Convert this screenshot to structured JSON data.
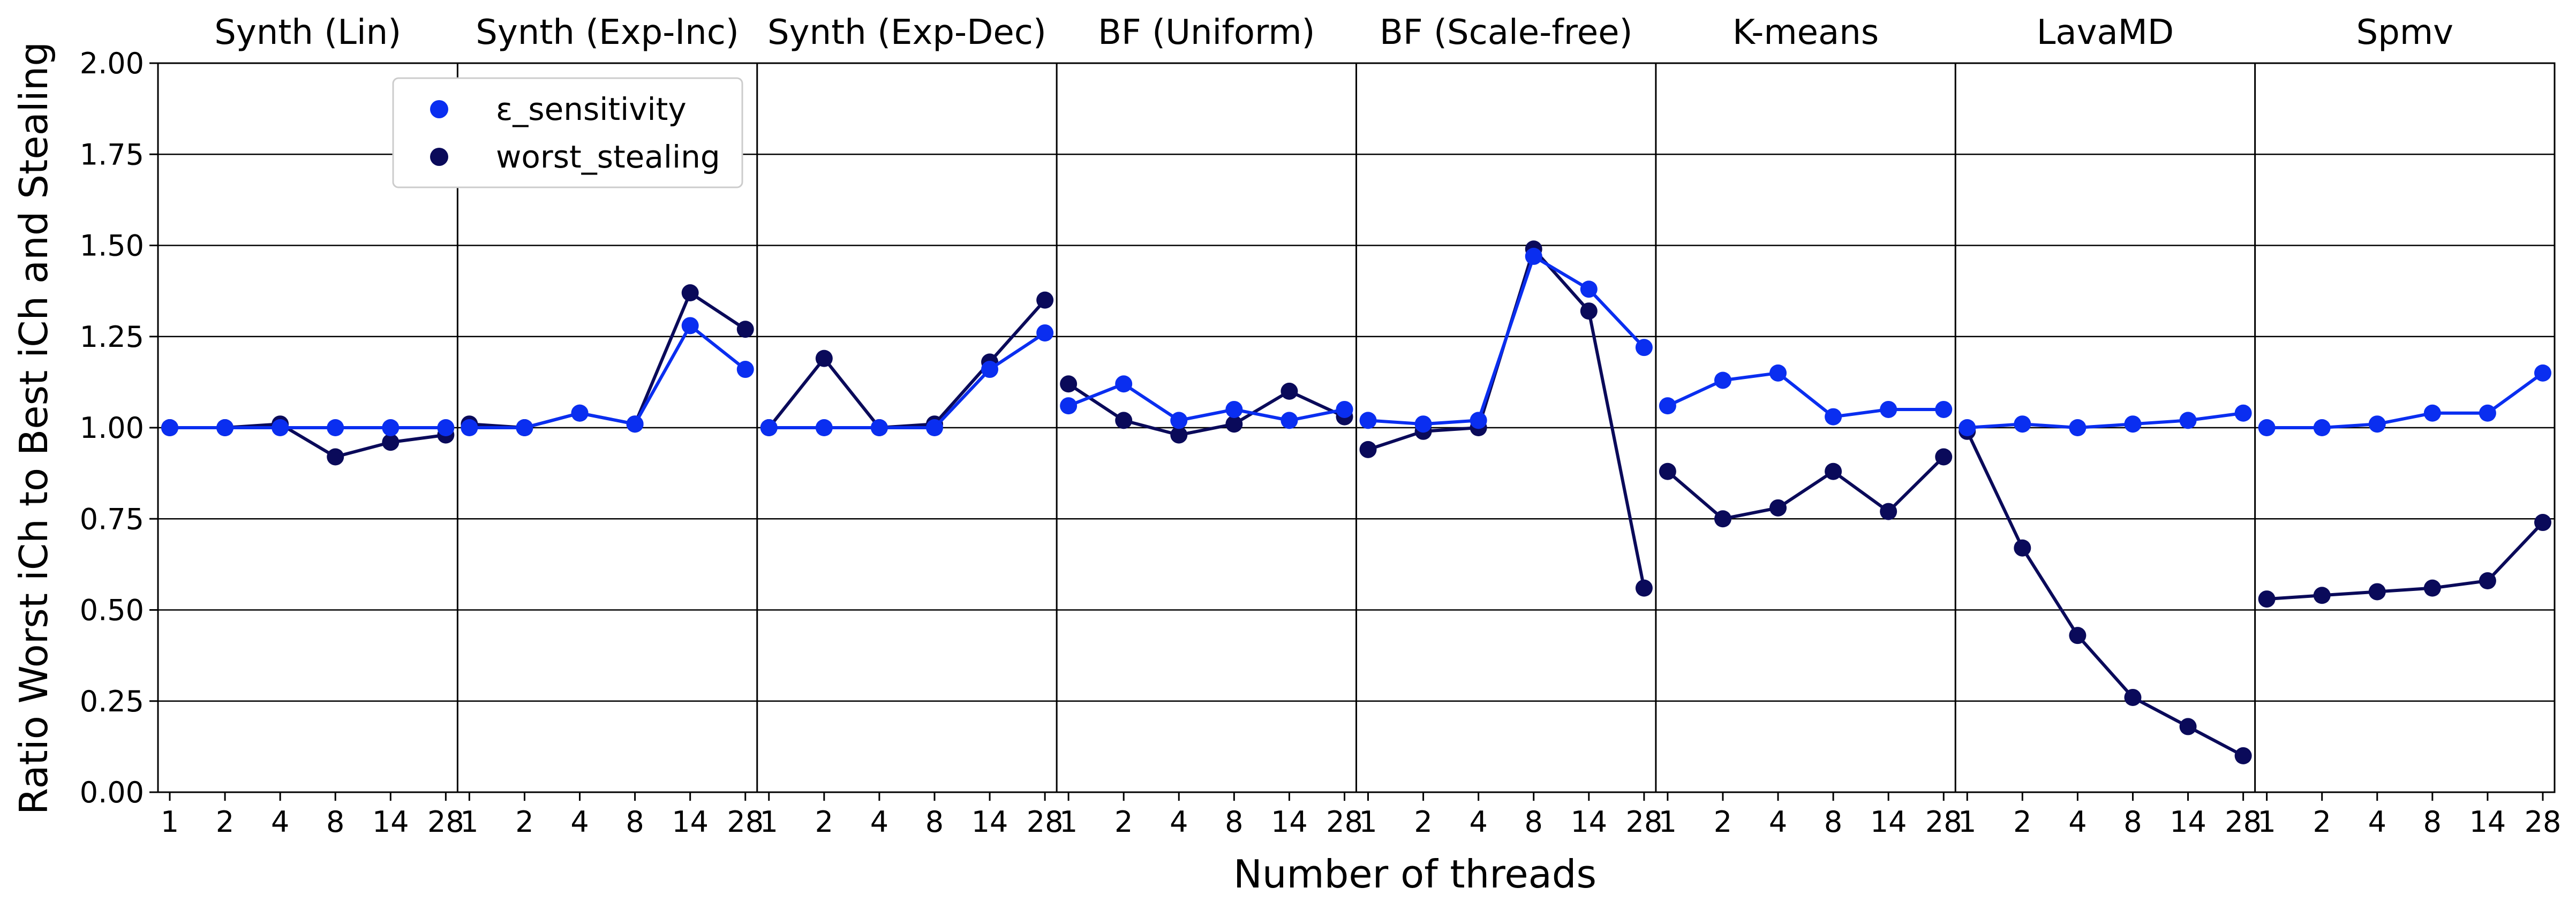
{
  "chart_data": {
    "type": "line",
    "xlabel": "Number of threads",
    "ylabel": "Ratio Worst iCh to Best iCh and Stealing",
    "ylim": [
      0,
      2
    ],
    "yticks": [
      "0.00",
      "0.25",
      "0.50",
      "0.75",
      "1.00",
      "1.25",
      "1.50",
      "1.75",
      "2.00"
    ],
    "grid": "horizontal",
    "legend_position": "top-left",
    "threads": [
      "1",
      "2",
      "4",
      "8",
      "14",
      "28"
    ],
    "series_styles": [
      {
        "name": "ε_sensitivity",
        "color": "#0a2ef0"
      },
      {
        "name": "worst_stealing",
        "color": "#0a0a5a"
      }
    ],
    "panels": [
      {
        "title": "Synth (Lin)",
        "eps": [
          1.0,
          1.0,
          1.0,
          1.0,
          1.0,
          1.0
        ],
        "worst": [
          1.0,
          1.0,
          1.01,
          0.92,
          0.96,
          0.98
        ]
      },
      {
        "title": "Synth (Exp-Inc)",
        "eps": [
          1.0,
          1.0,
          1.04,
          1.01,
          1.28,
          1.16
        ],
        "worst": [
          1.01,
          1.0,
          1.04,
          1.01,
          1.37,
          1.27
        ]
      },
      {
        "title": "Synth (Exp-Dec)",
        "eps": [
          1.0,
          1.0,
          1.0,
          1.0,
          1.16,
          1.26
        ],
        "worst": [
          1.0,
          1.19,
          1.0,
          1.01,
          1.18,
          1.35
        ]
      },
      {
        "title": "BF (Uniform)",
        "eps": [
          1.06,
          1.12,
          1.02,
          1.05,
          1.02,
          1.05
        ],
        "worst": [
          1.12,
          1.02,
          0.98,
          1.01,
          1.1,
          1.03
        ]
      },
      {
        "title": "BF (Scale-free)",
        "eps": [
          1.02,
          1.01,
          1.02,
          1.47,
          1.38,
          1.22
        ],
        "worst": [
          0.94,
          0.99,
          1.0,
          1.49,
          1.32,
          0.56
        ]
      },
      {
        "title": "K-means",
        "eps": [
          1.06,
          1.13,
          1.15,
          1.03,
          1.05,
          1.05
        ],
        "worst": [
          0.88,
          0.75,
          0.78,
          0.88,
          0.77,
          0.92
        ]
      },
      {
        "title": "LavaMD",
        "eps": [
          1.0,
          1.01,
          1.0,
          1.01,
          1.02,
          1.04
        ],
        "worst": [
          0.99,
          0.67,
          0.43,
          0.26,
          0.18,
          0.1
        ]
      },
      {
        "title": "Spmv",
        "eps": [
          1.0,
          1.0,
          1.01,
          1.04,
          1.04,
          1.15
        ],
        "worst": [
          0.53,
          0.54,
          0.55,
          0.56,
          0.58,
          0.74
        ]
      }
    ]
  }
}
